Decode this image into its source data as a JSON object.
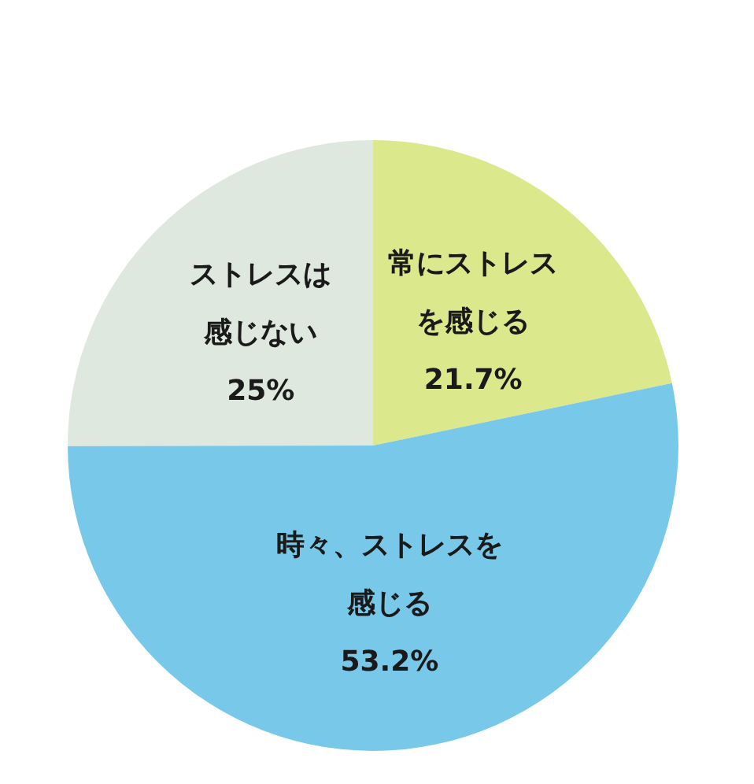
{
  "chart_data": {
    "type": "pie",
    "categories": [
      "常にストレスを感じる",
      "時々、ストレスを感じる",
      "ストレスは感じない"
    ],
    "values": [
      21.7,
      53.2,
      25
    ],
    "colors": [
      "#dbe98c",
      "#78c9e9",
      "#dfe8de"
    ],
    "value_labels": [
      "21.7%",
      "53.2%",
      "25%"
    ]
  }
}
